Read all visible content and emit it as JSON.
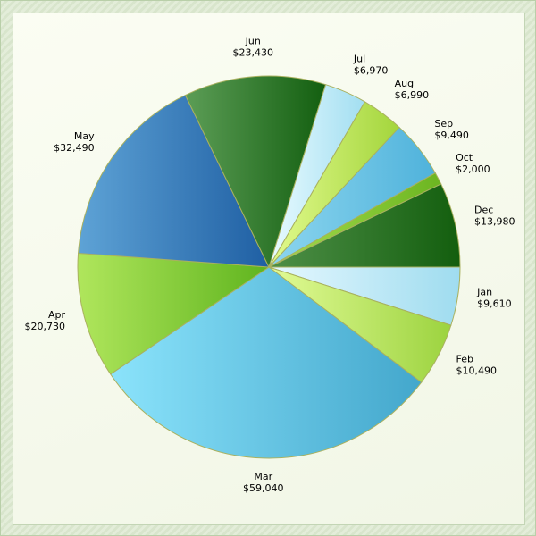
{
  "chart_data": {
    "type": "pie",
    "title": "",
    "slices": [
      {
        "label": "Jan",
        "value": 9610,
        "value_label": "$9,610",
        "colors": [
          "#e6f8ff",
          "#9fdcef"
        ]
      },
      {
        "label": "Feb",
        "value": 10490,
        "value_label": "$10,490",
        "colors": [
          "#e2fb96",
          "#9cd33f"
        ]
      },
      {
        "label": "Mar",
        "value": 59040,
        "value_label": "$59,040",
        "colors": [
          "#8be3fb",
          "#43a7cc"
        ]
      },
      {
        "label": "Apr",
        "value": 20730,
        "value_label": "$20,730",
        "colors": [
          "#b0e65c",
          "#5fb41e"
        ]
      },
      {
        "label": "May",
        "value": 32490,
        "value_label": "$32,490",
        "colors": [
          "#5ea3d6",
          "#1f5fa3"
        ]
      },
      {
        "label": "Jun",
        "value": 23430,
        "value_label": "$23,430",
        "colors": [
          "#5c9d56",
          "#135f10"
        ]
      },
      {
        "label": "Jul",
        "value": 6970,
        "value_label": "$6,970",
        "colors": [
          "#e9fbff",
          "#a2def1"
        ]
      },
      {
        "label": "Aug",
        "value": 6990,
        "value_label": "$6,990",
        "colors": [
          "#e3fb8e",
          "#a3d53c"
        ]
      },
      {
        "label": "Sep",
        "value": 9490,
        "value_label": "$9,490",
        "colors": [
          "#8dd6ef",
          "#4fb2db"
        ]
      },
      {
        "label": "Oct",
        "value": 2000,
        "value_label": "$2,000",
        "colors": [
          "#a6dd4d",
          "#6cb521"
        ]
      },
      {
        "label": "Dec",
        "value": 13980,
        "value_label": "$13,980",
        "colors": [
          "#4f9048",
          "#135e0e"
        ]
      }
    ],
    "start_angle": "3 o'clock, counter-clockwise display order (Jan below right)",
    "direction": "clockwise from 3 o'clock",
    "legend": "none"
  }
}
